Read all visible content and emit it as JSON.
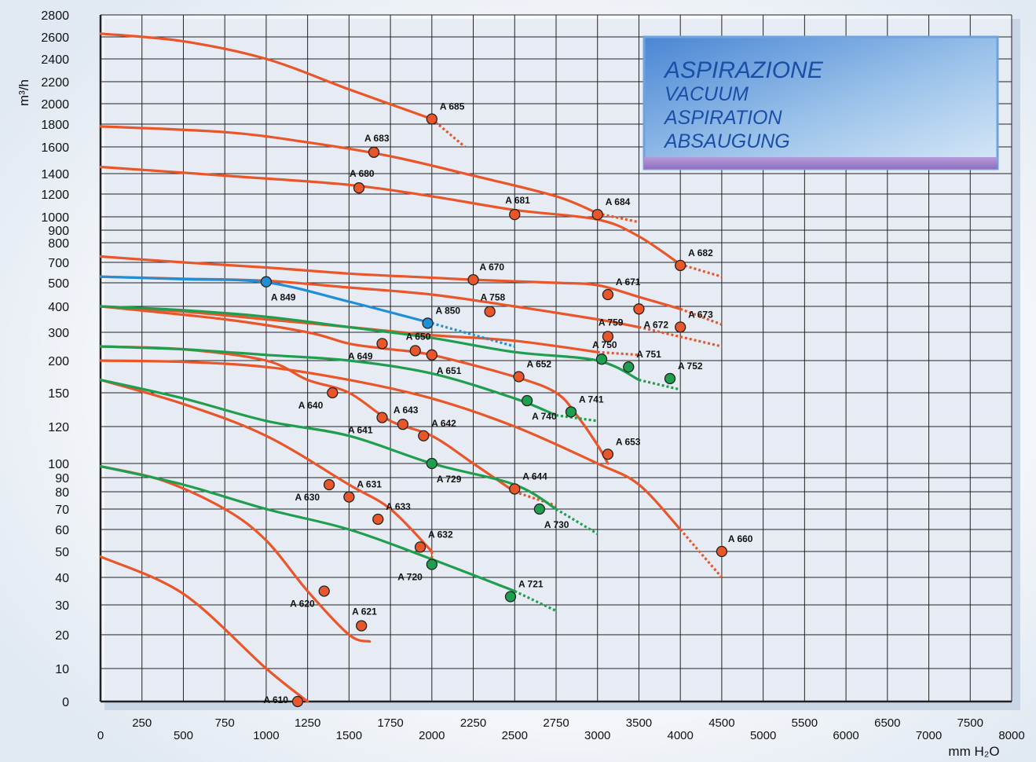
{
  "chart_data": {
    "type": "line",
    "title_lines": [
      "ASPIRAZIONE",
      "VACUUM",
      "ASPIRATION",
      "ABSAUGUNG"
    ],
    "xlabel": "mm H₂O",
    "ylabel": "m³/h",
    "x_ticks": [
      "0",
      "250",
      "500",
      "750",
      "1000",
      "1250",
      "1500",
      "1750",
      "2000",
      "2250",
      "2500",
      "2750",
      "3000",
      "3500",
      "4000",
      "4500",
      "5000",
      "5500",
      "6000",
      "6500",
      "7000",
      "7500",
      "8000"
    ],
    "y_ticks": [
      "0",
      "10",
      "20",
      "30",
      "40",
      "50",
      "60",
      "70",
      "80",
      "90",
      "100",
      "120",
      "150",
      "200",
      "300",
      "400",
      "500",
      "700",
      "800",
      "900",
      "1000",
      "1200",
      "1400",
      "1600",
      "1800",
      "2000",
      "2200",
      "2400",
      "2600",
      "2800"
    ],
    "grid": true,
    "colors": {
      "orange": "#e8562a",
      "green": "#1f9e4f",
      "blue": "#1f8fd6",
      "grid": "#222222"
    },
    "series": [
      {
        "color": "orange",
        "x": [
          0,
          500,
          1000,
          1500,
          2000
        ],
        "y": [
          2630,
          2560,
          2400,
          2130,
          1850
        ],
        "ext": [
          2200,
          1600
        ]
      },
      {
        "color": "orange",
        "x": [
          0,
          750,
          1250,
          1750,
          2250,
          2750,
          3000
        ],
        "y": [
          1780,
          1730,
          1640,
          1530,
          1380,
          1180,
          1030
        ],
        "ext": [
          3500,
          960
        ]
      },
      {
        "color": "orange",
        "x": [
          0,
          750,
          1500,
          2000,
          2500,
          3000,
          3500,
          4000
        ],
        "y": [
          1450,
          1380,
          1290,
          1180,
          1060,
          980,
          850,
          680
        ],
        "ext": [
          4500,
          560
        ]
      },
      {
        "color": "orange",
        "x": [
          0,
          500,
          1000,
          1500,
          2000,
          2250,
          2750,
          3000,
          3500,
          4000
        ],
        "y": [
          730,
          700,
          650,
          590,
          550,
          530,
          500,
          490,
          440,
          390
        ],
        "ext": [
          4500,
          330
        ]
      },
      {
        "color": "orange",
        "x": [
          0,
          500,
          1000,
          1500,
          2000,
          2500,
          3000,
          3500
        ],
        "y": [
          560,
          540,
          520,
          480,
          450,
          400,
          350,
          320
        ],
        "ext": [
          4500,
          250
        ]
      },
      {
        "color": "orange",
        "x": [
          0,
          500,
          1000,
          1500,
          2000,
          2500,
          3000
        ],
        "y": [
          400,
          380,
          350,
          320,
          290,
          270,
          230
        ],
        "ext": [
          3500,
          220
        ]
      },
      {
        "color": "orange",
        "x": [
          0,
          750,
          1250,
          1500,
          1750,
          2000,
          2500,
          2750,
          2875,
          3000,
          3125
        ],
        "y": [
          400,
          350,
          300,
          260,
          240,
          220,
          175,
          150,
          130,
          110,
          100
        ]
      },
      {
        "color": "orange",
        "x": [
          0,
          500,
          1000,
          1250,
          1500,
          1750,
          2000,
          2250,
          2500
        ],
        "y": [
          250,
          240,
          200,
          170,
          150,
          125,
          115,
          100,
          80
        ],
        "ext": [
          2750,
          72
        ]
      },
      {
        "color": "orange",
        "x": [
          0,
          500,
          1000,
          1500,
          2000,
          2500,
          3000,
          3500,
          4000
        ],
        "y": [
          200,
          198,
          190,
          170,
          145,
          120,
          100,
          85,
          60
        ],
        "ext": [
          4500,
          40
        ]
      },
      {
        "color": "orange",
        "x": [
          0,
          500,
          1000,
          1500,
          1750,
          2000
        ],
        "y": [
          170,
          140,
          115,
          85,
          70,
          50
        ],
        "ext": [
          2000,
          47
        ]
      },
      {
        "color": "orange",
        "x": [
          0,
          375,
          750,
          1000,
          1250,
          1500,
          1625
        ],
        "y": [
          98,
          88,
          70,
          55,
          35,
          20,
          18
        ]
      },
      {
        "color": "orange",
        "x": [
          0,
          500,
          1000,
          1250
        ],
        "y": [
          48,
          34,
          10,
          0
        ]
      },
      {
        "color": "green",
        "x": [
          0,
          500,
          1000,
          1500,
          2000,
          2500,
          3000,
          3500
        ],
        "y": [
          400,
          385,
          360,
          320,
          280,
          230,
          200,
          170
        ],
        "ext": [
          4000,
          155
        ]
      },
      {
        "color": "green",
        "x": [
          0,
          500,
          1000,
          1500,
          2000,
          2500,
          2750
        ],
        "y": [
          250,
          240,
          220,
          200,
          180,
          145,
          130
        ],
        "ext": [
          3000,
          125
        ]
      },
      {
        "color": "green",
        "x": [
          0,
          500,
          1000,
          1500,
          2000,
          2500,
          2750
        ],
        "y": [
          170,
          145,
          125,
          115,
          100,
          85,
          70
        ],
        "ext": [
          3000,
          58
        ]
      },
      {
        "color": "green",
        "x": [
          0,
          500,
          1000,
          1500,
          2000,
          2500
        ],
        "y": [
          98,
          85,
          70,
          60,
          47,
          35
        ],
        "ext": [
          2750,
          28
        ]
      },
      {
        "color": "blue",
        "x": [
          0,
          500,
          1000,
          1500,
          2000
        ],
        "y": [
          560,
          535,
          505,
          420,
          335
        ],
        "ext": [
          2500,
          250
        ]
      }
    ],
    "points": [
      {
        "name": "A 685",
        "x": 2000,
        "y": 1850,
        "color": "orange",
        "pos": "r"
      },
      {
        "name": "A 683",
        "x": 1650,
        "y": 1560,
        "color": "orange",
        "pos": "t"
      },
      {
        "name": "A 684",
        "x": 3000,
        "y": 1020,
        "color": "orange",
        "pos": "r"
      },
      {
        "name": "A 680",
        "x": 1560,
        "y": 1260,
        "color": "orange",
        "pos": "t"
      },
      {
        "name": "A 681",
        "x": 2500,
        "y": 1020,
        "color": "orange",
        "pos": "t"
      },
      {
        "name": "A 682",
        "x": 4000,
        "y": 670,
        "color": "orange",
        "pos": "r"
      },
      {
        "name": "A 670",
        "x": 2250,
        "y": 530,
        "color": "orange",
        "pos": "tr"
      },
      {
        "name": "A 671",
        "x": 3125,
        "y": 450,
        "color": "orange",
        "pos": "r"
      },
      {
        "name": "A 849",
        "x": 1000,
        "y": 510,
        "color": "blue",
        "pos": "b"
      },
      {
        "name": "A 758",
        "x": 2350,
        "y": 380,
        "color": "orange",
        "pos": "t"
      },
      {
        "name": "A 672",
        "x": 3500,
        "y": 390,
        "color": "orange",
        "pos": "b"
      },
      {
        "name": "A 673",
        "x": 4000,
        "y": 320,
        "color": "orange",
        "pos": "r"
      },
      {
        "name": "A 850",
        "x": 1975,
        "y": 335,
        "color": "blue",
        "pos": "r"
      },
      {
        "name": "A 759",
        "x": 3125,
        "y": 285,
        "color": "orange",
        "pos": "t"
      },
      {
        "name": "A 649",
        "x": 1700,
        "y": 260,
        "color": "orange",
        "pos": "bl"
      },
      {
        "name": "A 650",
        "x": 1900,
        "y": 235,
        "color": "orange",
        "pos": "t"
      },
      {
        "name": "A 651",
        "x": 2000,
        "y": 220,
        "color": "orange",
        "pos": "b"
      },
      {
        "name": "A 750",
        "x": 3050,
        "y": 205,
        "color": "green",
        "pos": "t"
      },
      {
        "name": "A 751",
        "x": 3375,
        "y": 190,
        "color": "green",
        "pos": "r"
      },
      {
        "name": "A 752",
        "x": 3875,
        "y": 172,
        "color": "green",
        "pos": "r"
      },
      {
        "name": "A 652",
        "x": 2525,
        "y": 175,
        "color": "orange",
        "pos": "r"
      },
      {
        "name": "A 640",
        "x": 1400,
        "y": 150,
        "color": "orange",
        "pos": "bl"
      },
      {
        "name": "A 740",
        "x": 2575,
        "y": 143,
        "color": "green",
        "pos": "b"
      },
      {
        "name": "A 741",
        "x": 2840,
        "y": 133,
        "color": "green",
        "pos": "r"
      },
      {
        "name": "A 641",
        "x": 1700,
        "y": 128,
        "color": "orange",
        "pos": "bl"
      },
      {
        "name": "A 643",
        "x": 1825,
        "y": 122,
        "color": "orange",
        "pos": "t"
      },
      {
        "name": "A 642",
        "x": 1950,
        "y": 115,
        "color": "orange",
        "pos": "r"
      },
      {
        "name": "A 653",
        "x": 3125,
        "y": 105,
        "color": "orange",
        "pos": "r"
      },
      {
        "name": "A 729",
        "x": 2000,
        "y": 100,
        "color": "green",
        "pos": "b"
      },
      {
        "name": "A 630",
        "x": 1380,
        "y": 85,
        "color": "orange",
        "pos": "bl"
      },
      {
        "name": "A 631",
        "x": 1500,
        "y": 77,
        "color": "orange",
        "pos": "r"
      },
      {
        "name": "A 644",
        "x": 2500,
        "y": 82,
        "color": "orange",
        "pos": "r"
      },
      {
        "name": "A 633",
        "x": 1675,
        "y": 65,
        "color": "orange",
        "pos": "r"
      },
      {
        "name": "A 730",
        "x": 2650,
        "y": 70,
        "color": "green",
        "pos": "b"
      },
      {
        "name": "A 660",
        "x": 4500,
        "y": 50,
        "color": "orange",
        "pos": "tr"
      },
      {
        "name": "A 632",
        "x": 1930,
        "y": 52,
        "color": "orange",
        "pos": "r"
      },
      {
        "name": "A 720",
        "x": 2000,
        "y": 45,
        "color": "green",
        "pos": "bl"
      },
      {
        "name": "A 620",
        "x": 1350,
        "y": 35,
        "color": "orange",
        "pos": "bl"
      },
      {
        "name": "A 721",
        "x": 2475,
        "y": 33,
        "color": "green",
        "pos": "r"
      },
      {
        "name": "A 621",
        "x": 1575,
        "y": 23,
        "color": "orange",
        "pos": "t"
      },
      {
        "name": "A 610",
        "x": 1190,
        "y": 0,
        "color": "orange",
        "pos": "l"
      }
    ]
  }
}
